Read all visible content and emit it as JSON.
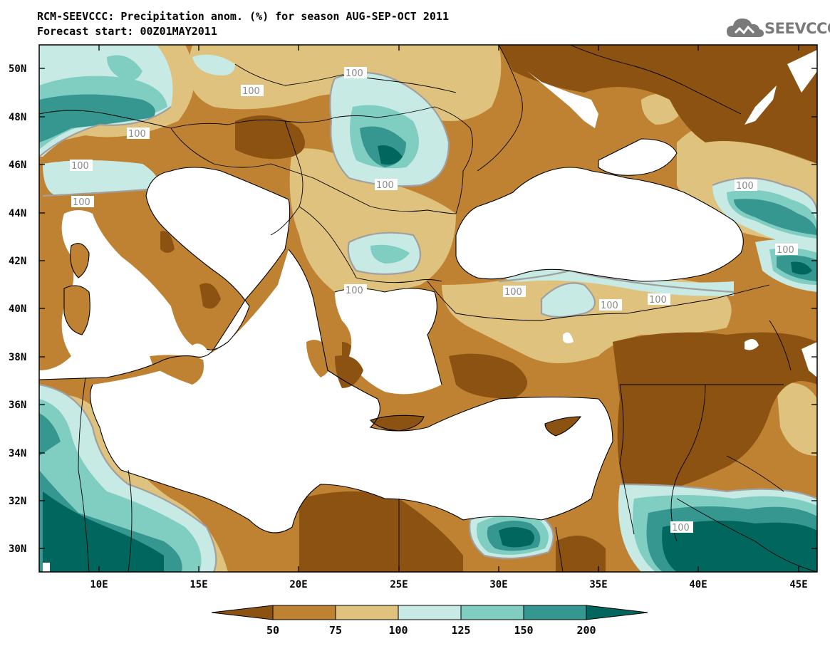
{
  "header": {
    "title": "RCM-SEEVCCC: Precipitation anom. (%) for season AUG-SEP-OCT 2011",
    "subtitle": "Forecast start: 00Z01MAY2011"
  },
  "logo": {
    "text": "SEEVCCC",
    "icon": "cloud-icon"
  },
  "map": {
    "lat_labels": [
      "50N",
      "48N",
      "46N",
      "44N",
      "42N",
      "40N",
      "38N",
      "36N",
      "34N",
      "32N",
      "30N"
    ],
    "lon_labels": [
      "10E",
      "15E",
      "20E",
      "25E",
      "30E",
      "35E",
      "40E",
      "45E"
    ],
    "contour_label": "100",
    "colors": {
      "lt50": "#8B5211",
      "50_75": "#BF8232",
      "75_100": "#DFC27D",
      "100_125": "#C7EAE5",
      "125_150": "#80CDC1",
      "150_200": "#35978F",
      "gt200": "#01665E",
      "sea": "#FFFFFF",
      "contour": "#A0A0A0"
    }
  },
  "colorbar": {
    "labels": [
      "50",
      "75",
      "100",
      "125",
      "150",
      "200"
    ]
  }
}
